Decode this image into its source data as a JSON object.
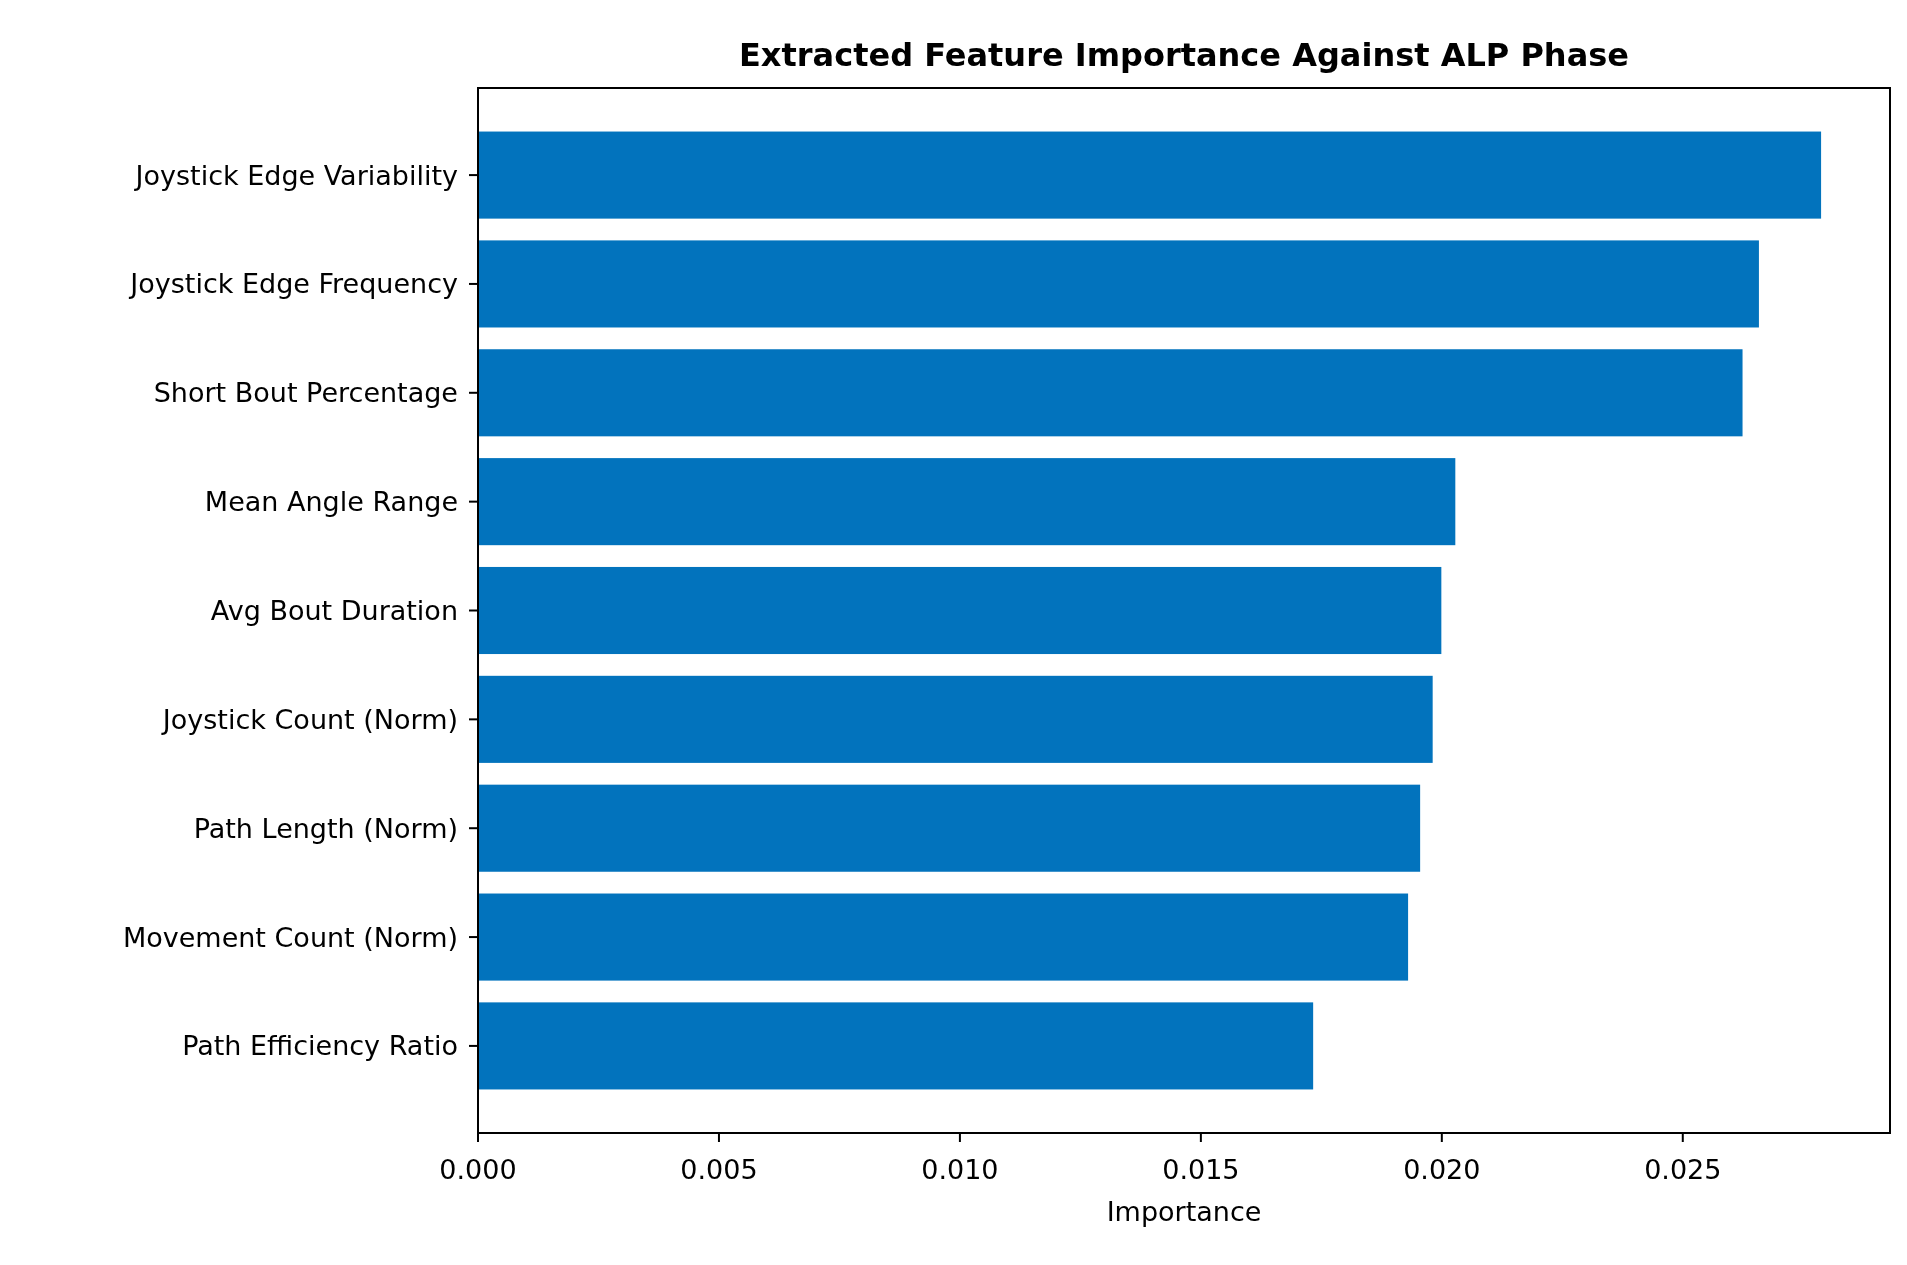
{
  "chart_data": {
    "type": "bar",
    "orientation": "horizontal",
    "title": "Extracted Feature Importance Against ALP Phase",
    "xlabel": "Importance",
    "categories": [
      "Joystick Edge Variability",
      "Joystick Edge Frequency",
      "Short Bout Percentage",
      "Mean Angle Range",
      "Avg Bout Duration",
      "Joystick Count (Norm)",
      "Path Length (Norm)",
      "Movement Count (Norm)",
      "Path Efficiency Ratio"
    ],
    "values": [
      0.02787,
      0.02658,
      0.02624,
      0.02028,
      0.01999,
      0.01981,
      0.01955,
      0.0193,
      0.01733
    ],
    "color": "#0273bd",
    "xlim": [
      0,
      0.0293
    ],
    "xticks": [
      {
        "value": 0,
        "label": "0.000"
      },
      {
        "value": 0.005,
        "label": "0.005"
      },
      {
        "value": 0.01,
        "label": "0.010"
      },
      {
        "value": 0.015,
        "label": "0.015"
      },
      {
        "value": 0.02,
        "label": "0.020"
      },
      {
        "value": 0.025,
        "label": "0.025"
      }
    ],
    "grid": false
  }
}
